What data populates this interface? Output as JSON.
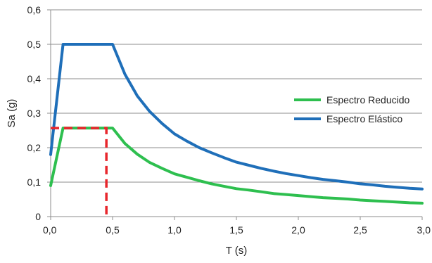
{
  "chart_data": {
    "type": "line",
    "title": "",
    "xlabel": "T (s)",
    "ylabel": "Sa (g)",
    "xlim": [
      0,
      3
    ],
    "ylim": [
      0,
      0.6
    ],
    "x_ticks": [
      "0,0",
      "0,5",
      "1,0",
      "1,5",
      "2,0",
      "2,5",
      "3,0"
    ],
    "y_ticks": [
      "0",
      "0,1",
      "0,2",
      "0,3",
      "0,4",
      "0,5",
      "0,6"
    ],
    "grid": "horizontal",
    "legend_position": "right",
    "series": [
      {
        "name": "Espectro Reducido",
        "color": "#2ebf4f",
        "points": [
          [
            0,
            0.09
          ],
          [
            0.1,
            0.257
          ],
          [
            0.2,
            0.257
          ],
          [
            0.3,
            0.257
          ],
          [
            0.4,
            0.257
          ],
          [
            0.5,
            0.257
          ],
          [
            0.6,
            0.212
          ],
          [
            0.7,
            0.181
          ],
          [
            0.8,
            0.157
          ],
          [
            0.9,
            0.14
          ],
          [
            1.0,
            0.124
          ],
          [
            1.1,
            0.114
          ],
          [
            1.2,
            0.104
          ],
          [
            1.3,
            0.095
          ],
          [
            1.4,
            0.088
          ],
          [
            1.5,
            0.081
          ],
          [
            1.6,
            0.077
          ],
          [
            1.7,
            0.072
          ],
          [
            1.8,
            0.067
          ],
          [
            1.9,
            0.064
          ],
          [
            2.0,
            0.061
          ],
          [
            2.1,
            0.058
          ],
          [
            2.2,
            0.055
          ],
          [
            2.3,
            0.053
          ],
          [
            2.4,
            0.051
          ],
          [
            2.5,
            0.048
          ],
          [
            2.6,
            0.046
          ],
          [
            2.7,
            0.044
          ],
          [
            2.8,
            0.042
          ],
          [
            2.9,
            0.04
          ],
          [
            3.0,
            0.039
          ]
        ]
      },
      {
        "name": "Espectro Elástico",
        "color": "#1f6fb9",
        "points": [
          [
            0,
            0.18
          ],
          [
            0.1,
            0.5
          ],
          [
            0.2,
            0.5
          ],
          [
            0.3,
            0.5
          ],
          [
            0.4,
            0.5
          ],
          [
            0.5,
            0.5
          ],
          [
            0.6,
            0.413
          ],
          [
            0.7,
            0.35
          ],
          [
            0.8,
            0.305
          ],
          [
            0.9,
            0.27
          ],
          [
            1.0,
            0.24
          ],
          [
            1.1,
            0.219
          ],
          [
            1.2,
            0.2
          ],
          [
            1.3,
            0.185
          ],
          [
            1.4,
            0.171
          ],
          [
            1.5,
            0.158
          ],
          [
            1.6,
            0.149
          ],
          [
            1.7,
            0.14
          ],
          [
            1.8,
            0.132
          ],
          [
            1.9,
            0.125
          ],
          [
            2.0,
            0.119
          ],
          [
            2.1,
            0.113
          ],
          [
            2.2,
            0.108
          ],
          [
            2.3,
            0.104
          ],
          [
            2.4,
            0.1
          ],
          [
            2.5,
            0.095
          ],
          [
            2.6,
            0.092
          ],
          [
            2.7,
            0.088
          ],
          [
            2.8,
            0.085
          ],
          [
            2.9,
            0.082
          ],
          [
            3.0,
            0.08
          ]
        ]
      }
    ],
    "reference_line": {
      "color": "#e8262c",
      "points": [
        [
          0,
          0.257
        ],
        [
          0.45,
          0.257
        ],
        [
          0.45,
          0
        ]
      ]
    }
  }
}
